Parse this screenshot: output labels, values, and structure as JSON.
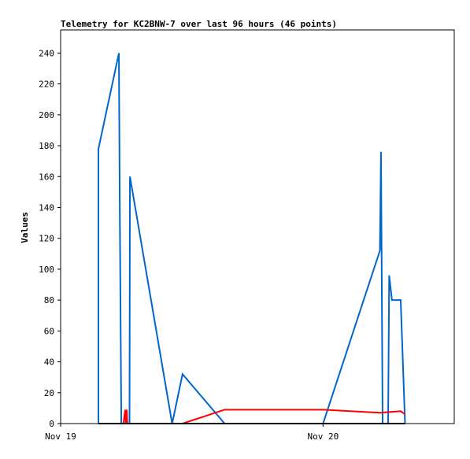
{
  "chart_data": {
    "type": "line",
    "title": "Telemetry for KC2BNW-7 over last 96 hours (46 points)",
    "y_label": "Values",
    "xlim": [
      0,
      36
    ],
    "xticks": [
      {
        "value": 0,
        "label": "Nov 19"
      },
      {
        "value": 24,
        "label": "Nov 20"
      }
    ],
    "ylim": [
      0,
      255
    ],
    "yticks": [
      0,
      20,
      40,
      60,
      80,
      100,
      120,
      140,
      160,
      180,
      200,
      220,
      240
    ],
    "series": [
      {
        "color": "#0066cc",
        "x": [
          3.46,
          3.46,
          5.33,
          5.4,
          5.55,
          6.3,
          6.34,
          10.2,
          11.15,
          15,
          24,
          29.2,
          29.3,
          29.45,
          29.95,
          30.05,
          30.3,
          31.1,
          31.5
        ],
        "values": [
          0,
          178,
          240,
          152,
          0,
          0,
          160,
          0,
          32,
          0,
          0,
          112,
          176,
          0,
          0,
          96,
          80,
          80,
          0
        ]
      },
      {
        "color": "#ff0000",
        "x": [
          3.46,
          5.75,
          5.9,
          5.95,
          6.05,
          6.1,
          11.15,
          15,
          24,
          29.2,
          31.1,
          31.5
        ],
        "values": [
          0,
          0,
          9,
          0,
          9,
          0,
          0,
          9,
          9,
          7,
          8,
          6
        ]
      },
      {
        "color": "#000000",
        "x": [
          3.46,
          31.5
        ],
        "values": [
          0,
          0
        ]
      }
    ]
  }
}
